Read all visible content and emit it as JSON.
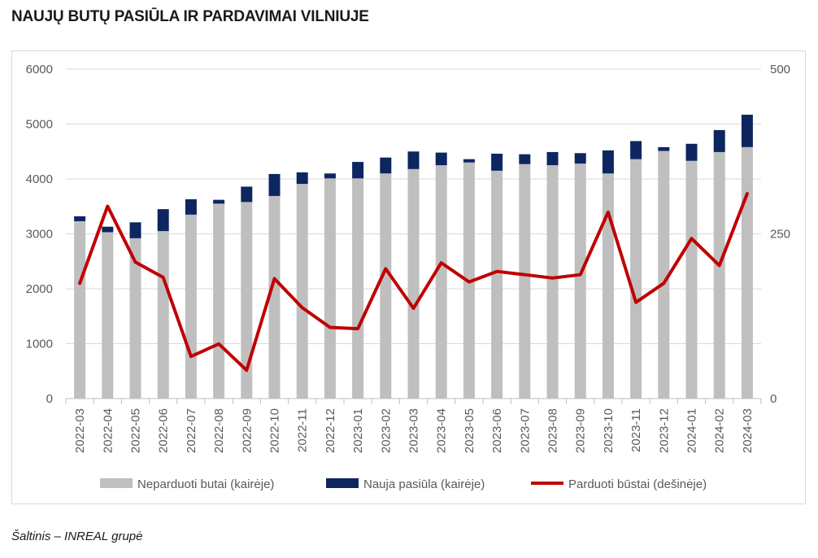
{
  "title": "NAUJŲ BUTŲ PASIŪLA IR PARDAVIMAI VILNIUJE",
  "source": "Šaltinis – INREAL grupė",
  "chart_data": {
    "type": "bar",
    "stacked": true,
    "title": "NAUJŲ BUTŲ PASIŪLA IR PARDAVIMAI VILNIUJE",
    "categories": [
      "2022-03",
      "2022-04",
      "2022-05",
      "2022-06",
      "2022-07",
      "2022-08",
      "2022-09",
      "2022-10",
      "2022-11",
      "2022-12",
      "2023-01",
      "2023-02",
      "2023-03",
      "2023-04",
      "2023-05",
      "2023-06",
      "2023-07",
      "2023-08",
      "2023-09",
      "2023-10",
      "2023-11",
      "2023-12",
      "2024-01",
      "2024-02",
      "2024-03"
    ],
    "left_axis": {
      "ylim": [
        0,
        6000
      ],
      "ticks": [
        "0",
        "1000",
        "2000",
        "3000",
        "4000",
        "5000",
        "6000"
      ]
    },
    "right_axis": {
      "ylim": [
        0,
        500
      ],
      "ticks": [
        "0",
        "250",
        "500"
      ]
    },
    "series": [
      {
        "name": "Neparduoti butai (kairėje)",
        "type": "bar",
        "axis": "left",
        "color": "#bfbfbf",
        "values": [
          3230,
          3030,
          2920,
          3050,
          3350,
          3550,
          3580,
          3690,
          3910,
          4010,
          4010,
          4100,
          4180,
          4250,
          4300,
          4150,
          4270,
          4250,
          4280,
          4100,
          4360,
          4510,
          4330,
          4490,
          4580
        ]
      },
      {
        "name": "Nauja pasiūla (kairėje)",
        "type": "bar",
        "axis": "left",
        "color": "#0d2660",
        "values": [
          90,
          100,
          290,
          400,
          280,
          70,
          280,
          400,
          210,
          90,
          300,
          290,
          320,
          230,
          60,
          310,
          180,
          240,
          190,
          420,
          330,
          70,
          310,
          400,
          590
        ]
      },
      {
        "name": "Parduoti būstai (dešinėje)",
        "type": "line",
        "axis": "right",
        "color": "#c00000",
        "values": [
          175,
          292,
          207,
          184,
          64,
          83,
          43,
          182,
          138,
          108,
          106,
          197,
          137,
          206,
          177,
          193,
          188,
          183,
          188,
          283,
          146,
          175,
          243,
          202,
          311
        ]
      }
    ],
    "grid": true,
    "legend": "bottom"
  }
}
